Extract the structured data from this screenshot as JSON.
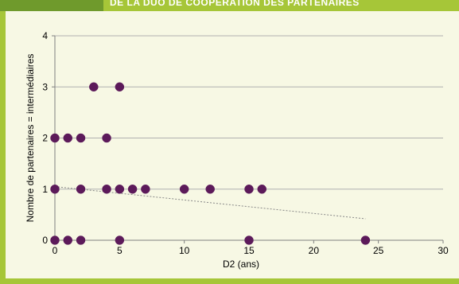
{
  "header": {
    "title": "DE LA DUO DE COOPÉRATION DES PARTENAIRES"
  },
  "colors": {
    "frame": "#a6c638",
    "frame_dark": "#6f9a2c",
    "background": "#f7f8e4",
    "point": "#5c1a5a",
    "gridline": "#b0b0b0",
    "trendline": "#888888"
  },
  "chart_data": {
    "type": "scatter",
    "xlabel": "D2 (ans)",
    "ylabel": "Nombre de partenaires = intermédiaires",
    "xlim": [
      0,
      30
    ],
    "ylim": [
      0,
      4
    ],
    "x_ticks": [
      0,
      5,
      10,
      15,
      20,
      25,
      30
    ],
    "y_ticks": [
      0,
      1,
      2,
      3,
      4
    ],
    "grid": "horizontal",
    "points": [
      {
        "x": 0,
        "y": 0
      },
      {
        "x": 1,
        "y": 0
      },
      {
        "x": 2,
        "y": 0
      },
      {
        "x": 5,
        "y": 0
      },
      {
        "x": 15,
        "y": 0
      },
      {
        "x": 24,
        "y": 0
      },
      {
        "x": 0,
        "y": 1
      },
      {
        "x": 2,
        "y": 1
      },
      {
        "x": 4,
        "y": 1
      },
      {
        "x": 5,
        "y": 1
      },
      {
        "x": 6,
        "y": 1
      },
      {
        "x": 7,
        "y": 1
      },
      {
        "x": 10,
        "y": 1
      },
      {
        "x": 12,
        "y": 1
      },
      {
        "x": 15,
        "y": 1
      },
      {
        "x": 16,
        "y": 1
      },
      {
        "x": 0,
        "y": 2
      },
      {
        "x": 1,
        "y": 2
      },
      {
        "x": 2,
        "y": 2
      },
      {
        "x": 4,
        "y": 2
      },
      {
        "x": 3,
        "y": 3
      },
      {
        "x": 5,
        "y": 3
      }
    ],
    "trendline": {
      "type": "linear",
      "x": [
        0,
        24
      ],
      "y": [
        1.05,
        0.42
      ]
    }
  }
}
